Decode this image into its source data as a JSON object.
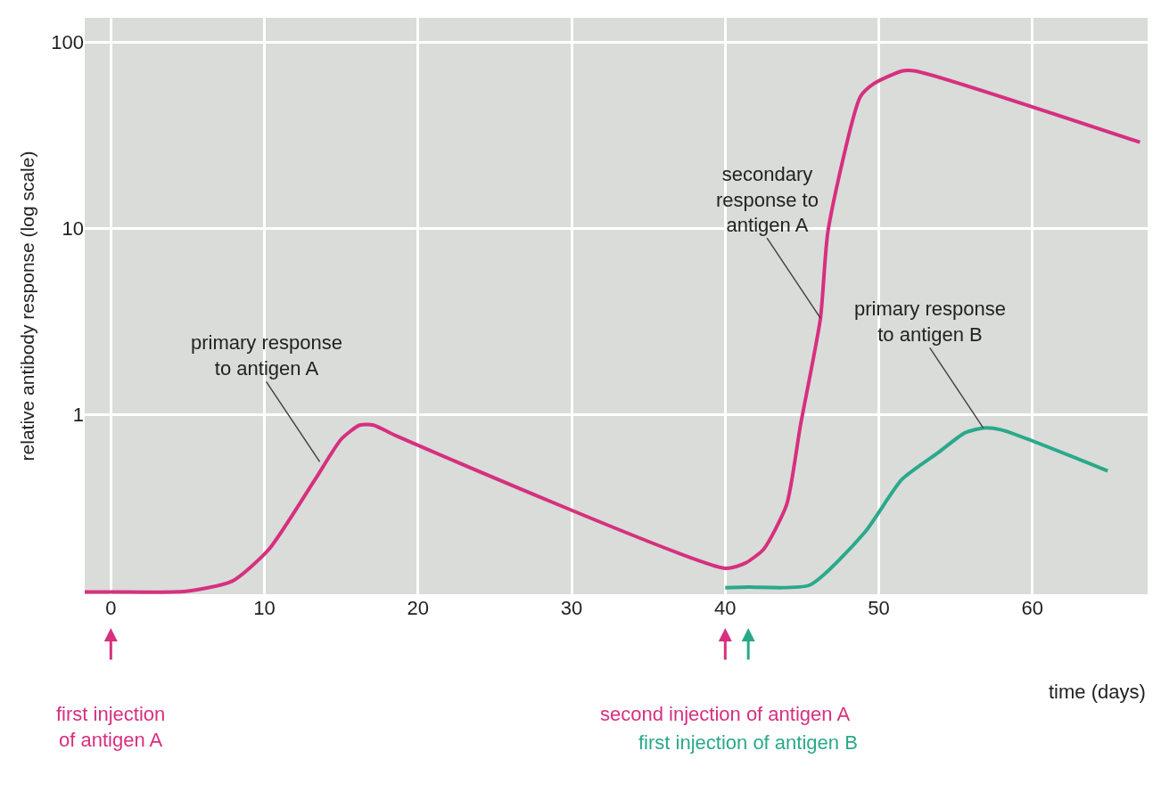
{
  "chart_data": {
    "type": "line",
    "xlabel": "time (days)",
    "ylabel": "relative antibody response (log scale)",
    "log": "y",
    "xlim": [
      -1.7,
      67.5
    ],
    "ylim": [
      0.109,
      135
    ],
    "xticks": [
      0,
      10,
      20,
      30,
      40,
      50,
      60
    ],
    "yticks": [
      1,
      10,
      100
    ],
    "grid": true,
    "marker": "none",
    "line_style": "solid",
    "series": [
      {
        "color": "#d6307f",
        "x": [
          -1.7,
          0,
          4.9,
          7.9,
          10.3,
          13.3,
          15.0,
          16.2,
          17.1,
          18.6,
          40,
          41.3,
          42.5,
          44,
          44.9,
          46.2,
          46.7,
          48.8,
          49.7,
          51.5,
          52.4,
          67
        ],
        "values": [
          0.112,
          0.112,
          0.113,
          0.128,
          0.19,
          0.45,
          0.74,
          0.88,
          0.88,
          0.77,
          0.15,
          0.16,
          0.19,
          0.33,
          0.88,
          3.3,
          9.8,
          51,
          60,
          70,
          70,
          29
        ]
      },
      {
        "color": "#2aa98a",
        "x": [
          40,
          41.5,
          45.5,
          49.1,
          51.5,
          53.9,
          55.6,
          56.8,
          58,
          64.9
        ],
        "values": [
          0.118,
          0.119,
          0.122,
          0.235,
          0.45,
          0.63,
          0.8,
          0.85,
          0.83,
          0.5
        ]
      }
    ],
    "annotations": [
      {
        "text": "primary response\nto antigen A",
        "x": 13.6,
        "y": 0.56
      },
      {
        "text": "secondary\nresponse to\nantigen A",
        "x": 46.2,
        "y": 3.3
      },
      {
        "text": "primary response\nto antigen B",
        "x": 56.8,
        "y": 0.85
      },
      "first injection\nof antigen A",
      "second injection of antigen A",
      "first injection of antigen B"
    ]
  }
}
